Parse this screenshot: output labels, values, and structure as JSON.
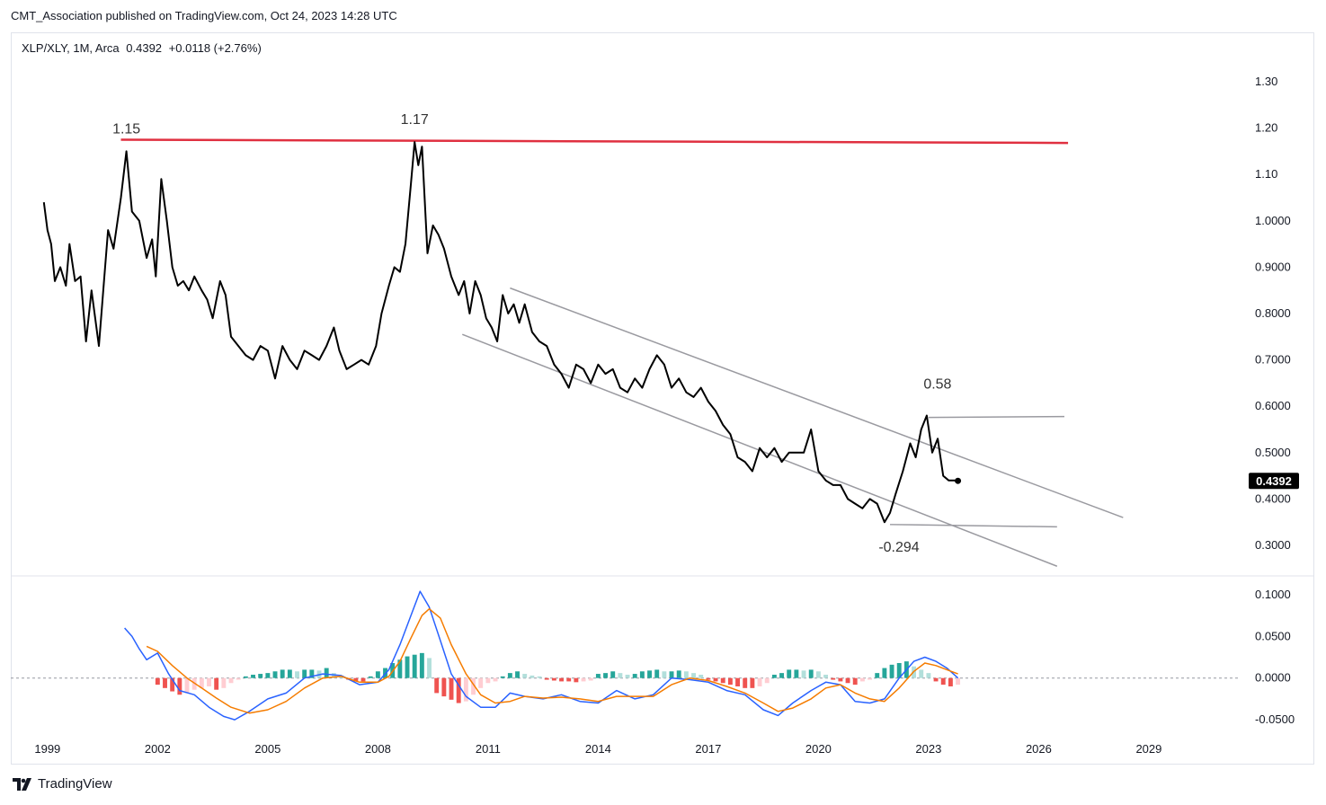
{
  "header": {
    "attribution": "CMT_Association published on TradingView.com, Oct 24, 2023 14:28 UTC"
  },
  "legend": {
    "symbol": "XLP/XLY, 1M, Arca",
    "last": "0.4392",
    "change": "+0.0118 (+2.76%)"
  },
  "footer": {
    "brand": "TradingView"
  },
  "colors": {
    "price_line": "#000000",
    "resistance": "#e03040",
    "channel": "#9a9aa0",
    "macd": "#2962ff",
    "signal": "#f57c00",
    "hist_pos_strong": "#26a69a",
    "hist_pos_weak": "#b2dfdb",
    "hist_neg_strong": "#ef5350",
    "hist_neg_weak": "#ffcdd2",
    "price_tag_bg": "#000000"
  },
  "chart_data": [
    {
      "type": "line",
      "title": "",
      "price_label": "0.4392",
      "y_ticks": [
        "1.30",
        "1.20",
        "1.10",
        "1.0000",
        "0.9000",
        "0.8000",
        "0.7000",
        "0.6000",
        "0.5000",
        "0.4000",
        "0.3000"
      ],
      "y_tick_values": [
        1.3,
        1.2,
        1.1,
        1.0,
        0.9,
        0.8,
        0.7,
        0.6,
        0.5,
        0.4,
        0.3
      ],
      "ylim": [
        0.24,
        1.36
      ],
      "x_ticks": [
        "1999",
        "2002",
        "2005",
        "2008",
        "2011",
        "2014",
        "2017",
        "2020",
        "2023",
        "2026",
        "2029"
      ],
      "x_tick_values": [
        1999,
        2002,
        2005,
        2008,
        2011,
        2014,
        2017,
        2020,
        2023,
        2026,
        2029
      ],
      "xlim": [
        1998,
        2031.5
      ],
      "series": [
        {
          "x": [
            1998.9,
            1999.0,
            1999.1,
            1999.2,
            1999.35,
            1999.5,
            1999.6,
            1999.75,
            1999.9,
            2000.05,
            2000.2,
            2000.4,
            2000.55,
            2000.65,
            2000.8,
            2001.0,
            2001.15,
            2001.3,
            2001.5,
            2001.7,
            2001.85,
            2001.95,
            2002.1,
            2002.25,
            2002.4,
            2002.55,
            2002.7,
            2002.85,
            2003.0,
            2003.2,
            2003.35,
            2003.5,
            2003.7,
            2003.85,
            2004.0,
            2004.2,
            2004.4,
            2004.6,
            2004.8,
            2005.0,
            2005.2,
            2005.4,
            2005.6,
            2005.8,
            2006.0,
            2006.2,
            2006.4,
            2006.6,
            2006.8,
            2006.95,
            2007.15,
            2007.35,
            2007.55,
            2007.75,
            2007.95,
            2008.1,
            2008.3,
            2008.45,
            2008.6,
            2008.75,
            2008.9,
            2009.0,
            2009.1,
            2009.2,
            2009.35,
            2009.5,
            2009.65,
            2009.8,
            2010.0,
            2010.2,
            2010.35,
            2010.5,
            2010.65,
            2010.8,
            2010.95,
            2011.1,
            2011.25,
            2011.4,
            2011.55,
            2011.7,
            2011.85,
            2012.0,
            2012.2,
            2012.4,
            2012.6,
            2012.8,
            2013.0,
            2013.2,
            2013.4,
            2013.6,
            2013.8,
            2014.0,
            2014.2,
            2014.4,
            2014.6,
            2014.8,
            2015.0,
            2015.2,
            2015.4,
            2015.6,
            2015.8,
            2016.0,
            2016.2,
            2016.4,
            2016.6,
            2016.8,
            2017.0,
            2017.2,
            2017.4,
            2017.6,
            2017.8,
            2018.0,
            2018.2,
            2018.4,
            2018.6,
            2018.8,
            2019.0,
            2019.2,
            2019.4,
            2019.6,
            2019.8,
            2020.0,
            2020.2,
            2020.4,
            2020.6,
            2020.8,
            2021.0,
            2021.2,
            2021.4,
            2021.6,
            2021.8,
            2021.95,
            2022.1,
            2022.3,
            2022.5,
            2022.65,
            2022.8,
            2022.95,
            2023.1,
            2023.25,
            2023.4,
            2023.55,
            2023.7,
            2023.8
          ],
          "y": [
            1.04,
            0.98,
            0.95,
            0.87,
            0.9,
            0.86,
            0.95,
            0.87,
            0.88,
            0.74,
            0.85,
            0.73,
            0.88,
            0.98,
            0.94,
            1.05,
            1.15,
            1.02,
            1.0,
            0.92,
            0.96,
            0.88,
            1.09,
            1.0,
            0.9,
            0.86,
            0.87,
            0.85,
            0.88,
            0.85,
            0.83,
            0.79,
            0.87,
            0.84,
            0.75,
            0.73,
            0.71,
            0.7,
            0.73,
            0.72,
            0.66,
            0.73,
            0.7,
            0.68,
            0.72,
            0.71,
            0.7,
            0.73,
            0.77,
            0.72,
            0.68,
            0.69,
            0.7,
            0.69,
            0.73,
            0.8,
            0.86,
            0.9,
            0.89,
            0.95,
            1.08,
            1.17,
            1.12,
            1.16,
            0.93,
            0.99,
            0.97,
            0.94,
            0.88,
            0.84,
            0.87,
            0.8,
            0.87,
            0.84,
            0.79,
            0.77,
            0.74,
            0.84,
            0.8,
            0.82,
            0.78,
            0.82,
            0.76,
            0.74,
            0.73,
            0.69,
            0.67,
            0.64,
            0.69,
            0.68,
            0.65,
            0.69,
            0.67,
            0.68,
            0.64,
            0.63,
            0.66,
            0.64,
            0.68,
            0.71,
            0.69,
            0.64,
            0.66,
            0.63,
            0.62,
            0.64,
            0.61,
            0.59,
            0.56,
            0.54,
            0.49,
            0.48,
            0.46,
            0.51,
            0.49,
            0.51,
            0.48,
            0.5,
            0.5,
            0.5,
            0.55,
            0.46,
            0.44,
            0.43,
            0.43,
            0.4,
            0.39,
            0.38,
            0.4,
            0.39,
            0.35,
            0.37,
            0.41,
            0.46,
            0.52,
            0.49,
            0.55,
            0.58,
            0.5,
            0.53,
            0.45,
            0.44,
            0.44,
            0.4392
          ]
        }
      ],
      "annotations": [
        {
          "text": "1.15",
          "x": 2001.15,
          "y": 1.15
        },
        {
          "text": "1.17",
          "x": 2009.0,
          "y": 1.17
        },
        {
          "text": "0.58",
          "x": 2023.0,
          "y": 0.58
        },
        {
          "text": "-0.294",
          "x": 2021.95,
          "y": 0.345
        }
      ],
      "lines": [
        {
          "name": "resistance",
          "x1": 2001.0,
          "y1": 1.175,
          "x2": 2026.8,
          "y2": 1.168
        },
        {
          "name": "channel-upper",
          "x1": 2011.6,
          "y1": 0.855,
          "x2": 2028.3,
          "y2": 0.36
        },
        {
          "name": "channel-lower",
          "x1": 2010.3,
          "y1": 0.755,
          "x2": 2026.5,
          "y2": 0.255
        },
        {
          "name": "high-marker",
          "x1": 2023.0,
          "y1": 0.576,
          "x2": 2026.7,
          "y2": 0.578
        },
        {
          "name": "low-marker",
          "x1": 2021.95,
          "y1": 0.345,
          "x2": 2026.5,
          "y2": 0.34
        }
      ]
    },
    {
      "type": "line",
      "title": "",
      "y_ticks": [
        "0.1000",
        "0.0500",
        "0.0000",
        "-0.0500"
      ],
      "y_tick_values": [
        0.1,
        0.05,
        0.0,
        -0.05
      ],
      "ylim": [
        -0.065,
        0.115
      ],
      "series": [
        {
          "name": "",
          "x": [
            2001.1,
            2001.3,
            2001.5,
            2001.7,
            2002.0,
            2002.3,
            2002.6,
            2003.0,
            2003.4,
            2003.8,
            2004.1,
            2004.5,
            2005.0,
            2005.5,
            2006.0,
            2006.5,
            2007.0,
            2007.5,
            2008.0,
            2008.3,
            2008.6,
            2008.9,
            2009.15,
            2009.4,
            2009.7,
            2010.0,
            2010.4,
            2010.8,
            2011.2,
            2011.6,
            2012.0,
            2012.5,
            2013.0,
            2013.5,
            2014.0,
            2014.5,
            2015.0,
            2015.5,
            2016.0,
            2016.5,
            2017.0,
            2017.5,
            2018.0,
            2018.5,
            2018.9,
            2019.3,
            2019.8,
            2020.2,
            2020.6,
            2021.0,
            2021.4,
            2021.8,
            2022.2,
            2022.6,
            2022.9,
            2023.2,
            2023.5,
            2023.8
          ],
          "y": [
            0.06,
            0.05,
            0.035,
            0.022,
            0.03,
            0.005,
            -0.015,
            -0.02,
            -0.035,
            -0.046,
            -0.05,
            -0.04,
            -0.025,
            -0.018,
            0.0,
            0.005,
            0.003,
            -0.008,
            -0.005,
            0.01,
            0.04,
            0.075,
            0.104,
            0.085,
            0.045,
            0.005,
            -0.022,
            -0.035,
            -0.035,
            -0.018,
            -0.022,
            -0.025,
            -0.02,
            -0.028,
            -0.03,
            -0.015,
            -0.025,
            -0.02,
            0.0,
            -0.002,
            -0.005,
            -0.015,
            -0.02,
            -0.038,
            -0.045,
            -0.03,
            -0.015,
            -0.005,
            -0.008,
            -0.028,
            -0.03,
            -0.025,
            0.0,
            0.02,
            0.025,
            0.02,
            0.012,
            0.0
          ]
        },
        {
          "name": "",
          "x": [
            2001.7,
            2002.0,
            2002.4,
            2002.8,
            2003.2,
            2003.6,
            2004.0,
            2004.5,
            2005.0,
            2005.5,
            2006.0,
            2006.5,
            2007.0,
            2007.5,
            2008.0,
            2008.3,
            2008.6,
            2008.9,
            2009.2,
            2009.4,
            2009.7,
            2010.0,
            2010.4,
            2010.8,
            2011.2,
            2011.6,
            2012.0,
            2012.5,
            2013.0,
            2013.5,
            2014.0,
            2014.5,
            2015.0,
            2015.5,
            2016.0,
            2016.5,
            2017.0,
            2017.5,
            2018.0,
            2018.5,
            2018.9,
            2019.3,
            2019.8,
            2020.2,
            2020.6,
            2021.0,
            2021.4,
            2021.8,
            2022.2,
            2022.6,
            2022.9,
            2023.2,
            2023.5,
            2023.8
          ],
          "y": [
            0.038,
            0.032,
            0.015,
            0.0,
            -0.012,
            -0.024,
            -0.035,
            -0.042,
            -0.038,
            -0.028,
            -0.012,
            0.0,
            0.002,
            -0.005,
            -0.005,
            0.002,
            0.02,
            0.048,
            0.075,
            0.083,
            0.072,
            0.04,
            0.005,
            -0.02,
            -0.03,
            -0.028,
            -0.022,
            -0.024,
            -0.023,
            -0.025,
            -0.028,
            -0.022,
            -0.022,
            -0.022,
            -0.008,
            0.0,
            -0.003,
            -0.01,
            -0.018,
            -0.03,
            -0.04,
            -0.036,
            -0.025,
            -0.012,
            -0.008,
            -0.018,
            -0.025,
            -0.028,
            -0.012,
            0.008,
            0.018,
            0.015,
            0.01,
            0.005
          ]
        }
      ],
      "histogram": {
        "x": [
          2002.0,
          2002.2,
          2002.4,
          2002.6,
          2002.8,
          2003.0,
          2003.2,
          2003.4,
          2003.6,
          2003.8,
          2004.0,
          2004.2,
          2004.4,
          2004.6,
          2004.8,
          2005.0,
          2005.2,
          2005.4,
          2005.6,
          2005.8,
          2006.0,
          2006.2,
          2006.4,
          2006.6,
          2006.8,
          2007.0,
          2007.2,
          2007.4,
          2007.6,
          2007.8,
          2008.0,
          2008.2,
          2008.4,
          2008.6,
          2008.8,
          2009.0,
          2009.2,
          2009.4,
          2009.6,
          2009.8,
          2010.0,
          2010.2,
          2010.4,
          2010.6,
          2010.8,
          2011.0,
          2011.2,
          2011.4,
          2011.6,
          2011.8,
          2012.0,
          2012.2,
          2012.4,
          2012.6,
          2012.8,
          2013.0,
          2013.2,
          2013.4,
          2013.6,
          2013.8,
          2014.0,
          2014.2,
          2014.4,
          2014.6,
          2014.8,
          2015.0,
          2015.2,
          2015.4,
          2015.6,
          2015.8,
          2016.0,
          2016.2,
          2016.4,
          2016.6,
          2016.8,
          2017.0,
          2017.2,
          2017.4,
          2017.6,
          2017.8,
          2018.0,
          2018.2,
          2018.4,
          2018.6,
          2018.8,
          2019.0,
          2019.2,
          2019.4,
          2019.6,
          2019.8,
          2020.0,
          2020.2,
          2020.4,
          2020.6,
          2020.8,
          2021.0,
          2021.2,
          2021.4,
          2021.6,
          2021.8,
          2022.0,
          2022.2,
          2022.4,
          2022.6,
          2022.8,
          2023.0,
          2023.2,
          2023.4,
          2023.6,
          2023.8
        ],
        "y": [
          -0.008,
          -0.012,
          -0.016,
          -0.02,
          -0.018,
          -0.014,
          -0.012,
          -0.01,
          -0.014,
          -0.012,
          -0.006,
          -0.002,
          0.002,
          0.004,
          0.005,
          0.006,
          0.008,
          0.01,
          0.01,
          0.008,
          0.01,
          0.01,
          0.009,
          0.012,
          0.006,
          0.002,
          -0.002,
          -0.004,
          -0.004,
          0.002,
          0.008,
          0.012,
          0.018,
          0.022,
          0.026,
          0.028,
          0.03,
          0.024,
          -0.018,
          -0.022,
          -0.026,
          -0.03,
          -0.028,
          -0.02,
          -0.012,
          -0.006,
          -0.004,
          0.002,
          0.006,
          0.008,
          0.005,
          0.003,
          0.002,
          -0.002,
          -0.003,
          -0.004,
          -0.004,
          -0.005,
          -0.004,
          -0.003,
          0.005,
          0.006,
          0.008,
          0.006,
          0.004,
          0.005,
          0.008,
          0.009,
          0.01,
          0.008,
          0.008,
          0.009,
          0.008,
          0.006,
          0.004,
          -0.002,
          -0.004,
          -0.006,
          -0.008,
          -0.01,
          -0.012,
          -0.012,
          -0.01,
          -0.006,
          0.004,
          0.006,
          0.01,
          0.01,
          0.009,
          0.01,
          0.008,
          0.004,
          -0.002,
          -0.004,
          -0.006,
          -0.008,
          -0.004,
          -0.002,
          0.006,
          0.012,
          0.016,
          0.018,
          0.02,
          0.014,
          0.01,
          0.006,
          -0.004,
          -0.008,
          -0.01,
          -0.008
        ]
      }
    }
  ]
}
